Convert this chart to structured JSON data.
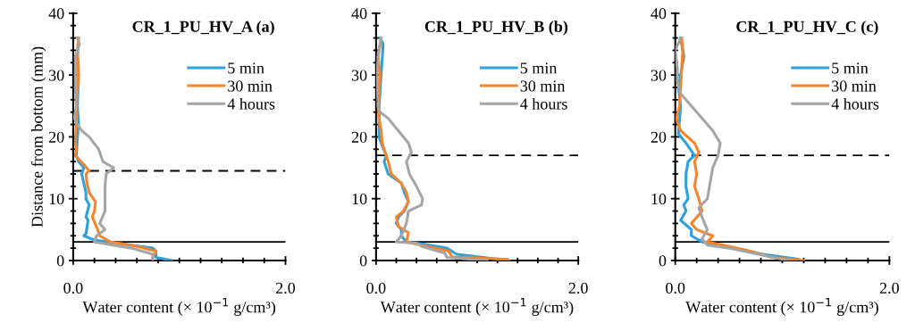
{
  "chart_data": [
    {
      "type": "line",
      "title": "CR_1_PU_HV_A (a)",
      "xlabel": "Water content (× 10$^{−1}$ g/cm³)",
      "ylabel": "Distance from bottom (mm)",
      "legend": "right",
      "grid": false,
      "xlim": [
        0,
        2
      ],
      "xticks": [
        {
          "value": 0,
          "label": "0.0"
        },
        {
          "value": 0.2,
          "label": null
        },
        {
          "value": 0.4,
          "label": null
        },
        {
          "value": 0.6,
          "label": null
        },
        {
          "value": 0.8,
          "label": null
        },
        {
          "value": 1.0,
          "label": null
        },
        {
          "value": 1.2,
          "label": null
        },
        {
          "value": 1.4,
          "label": null
        },
        {
          "value": 1.6,
          "label": null
        },
        {
          "value": 1.8,
          "label": null
        },
        {
          "value": 2,
          "label": "2.0"
        }
      ],
      "ylim": [
        0,
        40
      ],
      "yticks": [
        0,
        {
          "value": 2,
          "label": null
        },
        {
          "value": 4,
          "label": null
        },
        {
          "value": 6,
          "label": null
        },
        {
          "value": 8,
          "label": null
        },
        10,
        {
          "value": 12,
          "label": null
        },
        {
          "value": 14,
          "label": null
        },
        {
          "value": 16,
          "label": null
        },
        {
          "value": 18,
          "label": null
        },
        20,
        {
          "value": 22,
          "label": null
        },
        {
          "value": 24,
          "label": null
        },
        {
          "value": 26,
          "label": null
        },
        {
          "value": 28,
          "label": null
        },
        30,
        {
          "value": 32,
          "label": null
        },
        {
          "value": 34,
          "label": null
        },
        {
          "value": 36,
          "label": null
        },
        {
          "value": 38,
          "label": null
        },
        40
      ],
      "ref_lines": [
        {
          "axis": "y",
          "value": 3,
          "color": "#000000",
          "line_style": "solid"
        },
        {
          "axis": "y",
          "value": 14.5,
          "color": "#000000",
          "line_style": "dashed"
        }
      ],
      "series": [
        {
          "name": "5 min",
          "color": "#2ea1dc",
          "x": [
            0.93,
            0.78,
            0.78,
            0.75,
            0.45,
            0.2,
            0.1,
            0.12,
            0.14,
            0.12,
            0.15,
            0.12,
            0.12,
            0.1,
            0.08,
            0.1,
            0.05,
            0.03,
            0.04,
            0.05,
            0.04,
            0.05,
            0.04,
            0.05
          ],
          "values": [
            0,
            0.5,
            1.5,
            2,
            2.7,
            3.3,
            4,
            4.3,
            6.5,
            7,
            9,
            10,
            11,
            12.5,
            14,
            15,
            16,
            17,
            20,
            22,
            25,
            30,
            33,
            36
          ]
        },
        {
          "name": "30 min",
          "color": "#f7842b",
          "x": [
            0.75,
            0.78,
            0.55,
            0.35,
            0.25,
            0.23,
            0.18,
            0.2,
            0.21,
            0.15,
            0.13,
            0.12,
            0.15,
            0.1,
            0.02,
            0.03,
            0.02,
            0.03,
            0.03,
            0.05,
            0.04,
            0.05
          ],
          "values": [
            0.5,
            1.5,
            2.5,
            3,
            4,
            5,
            7,
            8,
            9.5,
            11,
            12.5,
            14,
            14.5,
            15.5,
            17,
            18,
            19,
            22,
            25,
            30,
            34,
            36
          ]
        },
        {
          "name": "4 hours",
          "color": "#a5a5a5",
          "x": [
            0.75,
            0.75,
            0.55,
            0.2,
            0.22,
            0.3,
            0.25,
            0.3,
            0.3,
            0.3,
            0.31,
            0.38,
            0.28,
            0.24,
            0.15,
            0.08,
            0.04,
            0.01,
            0.03,
            0.02,
            0.02,
            0.02,
            0.06,
            0.04
          ],
          "values": [
            0,
            1,
            2,
            3,
            4,
            5,
            6,
            8,
            10,
            12,
            14,
            15,
            16,
            18,
            20,
            21,
            22,
            23,
            25,
            28,
            30,
            33,
            35,
            36
          ]
        }
      ]
    },
    {
      "type": "line",
      "title": "CR_1_PU_HV_B (b)",
      "xlabel": "Water content (× 10$^{−1}$ g/cm³)",
      "legend": "right",
      "grid": false,
      "xlim": [
        0,
        2
      ],
      "xticks": [
        {
          "value": 0,
          "label": "0.0"
        },
        {
          "value": 0.2,
          "label": null
        },
        {
          "value": 0.4,
          "label": null
        },
        {
          "value": 0.6,
          "label": null
        },
        {
          "value": 0.8,
          "label": null
        },
        {
          "value": 1.0,
          "label": null
        },
        {
          "value": 1.2,
          "label": null
        },
        {
          "value": 1.4,
          "label": null
        },
        {
          "value": 1.6,
          "label": null
        },
        {
          "value": 1.8,
          "label": null
        },
        {
          "value": 2,
          "label": "2.0"
        }
      ],
      "ylim": [
        0,
        40
      ],
      "yticks": [
        0,
        {
          "value": 2,
          "label": null
        },
        {
          "value": 4,
          "label": null
        },
        {
          "value": 6,
          "label": null
        },
        {
          "value": 8,
          "label": null
        },
        10,
        {
          "value": 12,
          "label": null
        },
        {
          "value": 14,
          "label": null
        },
        {
          "value": 16,
          "label": null
        },
        {
          "value": 18,
          "label": null
        },
        20,
        {
          "value": 22,
          "label": null
        },
        {
          "value": 24,
          "label": null
        },
        {
          "value": 26,
          "label": null
        },
        {
          "value": 28,
          "label": null
        },
        30,
        {
          "value": 32,
          "label": null
        },
        {
          "value": 34,
          "label": null
        },
        {
          "value": 36,
          "label": null
        },
        {
          "value": 38,
          "label": null
        },
        40
      ],
      "ref_lines": [
        {
          "axis": "y",
          "value": 3,
          "color": "#000000",
          "line_style": "solid"
        },
        {
          "axis": "y",
          "value": 17,
          "color": "#000000",
          "line_style": "dashed"
        }
      ],
      "series": [
        {
          "name": "5 min",
          "color": "#2ea1dc",
          "x": [
            1.32,
            0.8,
            0.7,
            0.45,
            0.3,
            0.25,
            0.25,
            0.2,
            0.22,
            0.28,
            0.32,
            0.28,
            0.25,
            0.12,
            0.1,
            0.08,
            0.1,
            0.05,
            0.03,
            0.03,
            0.05,
            0.07,
            0.04
          ],
          "values": [
            0,
            1,
            2,
            2.7,
            3,
            4,
            5,
            6,
            7,
            8,
            9.5,
            11,
            12.5,
            14,
            15,
            16,
            17,
            19,
            20,
            25,
            30,
            35,
            36
          ]
        },
        {
          "name": "30 min",
          "color": "#f7842b",
          "x": [
            1.3,
            0.75,
            0.72,
            0.45,
            0.3,
            0.32,
            0.22,
            0.2,
            0.27,
            0.32,
            0.3,
            0.25,
            0.15,
            0.12,
            0.1,
            0.06,
            0.05,
            0.03,
            0.02,
            0.04,
            0.02,
            0.05
          ],
          "values": [
            0.2,
            0.6,
            1.5,
            2.5,
            3,
            4.5,
            5.5,
            7,
            8,
            9.5,
            11,
            12.5,
            14,
            16,
            17,
            19,
            21,
            23,
            25,
            30,
            33,
            36
          ]
        },
        {
          "name": "4 hours",
          "color": "#a5a5a5",
          "x": [
            1.1,
            0.7,
            0.68,
            0.45,
            0.4,
            0.2,
            0.25,
            0.3,
            0.32,
            0.45,
            0.46,
            0.4,
            0.33,
            0.3,
            0.35,
            0.32,
            0.22,
            0.12,
            0.04,
            0.02,
            0.01,
            0.02,
            0.05
          ],
          "values": [
            0,
            0.5,
            1.2,
            2.3,
            2.8,
            3,
            4,
            6,
            8,
            9,
            10,
            12,
            14,
            16,
            17.5,
            19,
            21,
            23,
            24,
            25,
            30,
            33,
            36
          ]
        }
      ]
    },
    {
      "type": "line",
      "title": "CR_1_PU_HV_C (c)",
      "xlabel": "Water content (× 10$^{−1}$ g/cm³)",
      "legend": "right",
      "grid": false,
      "xlim": [
        0,
        2
      ],
      "xticks": [
        {
          "value": 0,
          "label": "0.0"
        },
        {
          "value": 0.2,
          "label": null
        },
        {
          "value": 0.4,
          "label": null
        },
        {
          "value": 0.6,
          "label": null
        },
        {
          "value": 0.8,
          "label": null
        },
        {
          "value": 1.0,
          "label": null
        },
        {
          "value": 1.2,
          "label": null
        },
        {
          "value": 1.4,
          "label": null
        },
        {
          "value": 1.6,
          "label": null
        },
        {
          "value": 1.8,
          "label": null
        },
        {
          "value": 2,
          "label": "2.0"
        }
      ],
      "ylim": [
        0,
        40
      ],
      "yticks": [
        0,
        {
          "value": 2,
          "label": null
        },
        {
          "value": 4,
          "label": null
        },
        {
          "value": 6,
          "label": null
        },
        {
          "value": 8,
          "label": null
        },
        10,
        {
          "value": 12,
          "label": null
        },
        {
          "value": 14,
          "label": null
        },
        {
          "value": 16,
          "label": null
        },
        {
          "value": 18,
          "label": null
        },
        20,
        {
          "value": 22,
          "label": null
        },
        {
          "value": 24,
          "label": null
        },
        {
          "value": 26,
          "label": null
        },
        {
          "value": 28,
          "label": null
        },
        30,
        {
          "value": 32,
          "label": null
        },
        {
          "value": 34,
          "label": null
        },
        {
          "value": 36,
          "label": null
        },
        {
          "value": 38,
          "label": null
        },
        40
      ],
      "ref_lines": [
        {
          "axis": "y",
          "value": 3,
          "color": "#000000",
          "line_style": "solid"
        },
        {
          "axis": "y",
          "value": 17,
          "color": "#000000",
          "line_style": "dashed"
        }
      ],
      "series": [
        {
          "name": "5 min",
          "color": "#2ea1dc",
          "x": [
            1.18,
            1.15,
            0.82,
            0.55,
            0.25,
            0.15,
            0.15,
            0.05,
            0.1,
            0.08,
            0.12,
            0.1,
            0.1,
            0.12,
            0.18,
            0.1,
            0.03,
            0.05,
            0.03,
            0.05,
            0.08,
            0.05
          ],
          "values": [
            0,
            0.2,
            1,
            2,
            3,
            4,
            5,
            6.5,
            8,
            9,
            10,
            12,
            14,
            16,
            17,
            19,
            20.5,
            25,
            28,
            30,
            33,
            36
          ]
        },
        {
          "name": "30 min",
          "color": "#f7842b",
          "x": [
            1.2,
            0.9,
            0.7,
            0.45,
            0.3,
            0.35,
            0.2,
            0.15,
            0.25,
            0.22,
            0.18,
            0.2,
            0.18,
            0.22,
            0.18,
            0.05,
            0.01,
            0.04,
            0.05,
            0.06,
            0.07,
            0.06
          ],
          "values": [
            0,
            0.5,
            1.5,
            2.5,
            3,
            4,
            5,
            6,
            8,
            10,
            12,
            14,
            16,
            17.5,
            19,
            21,
            23,
            25,
            28,
            31,
            34,
            36
          ]
        },
        {
          "name": "4 hours",
          "color": "#a5a5a5",
          "x": [
            1.05,
            0.78,
            0.5,
            0.3,
            0.25,
            0.3,
            0.25,
            0.22,
            0.3,
            0.32,
            0.35,
            0.4,
            0.42,
            0.35,
            0.25,
            0.15,
            0.05,
            0.02,
            0.02,
            0.0,
            0.05
          ],
          "values": [
            0,
            1,
            2,
            2.5,
            3.5,
            5,
            7,
            8.5,
            10,
            12,
            15,
            17,
            19,
            21,
            23,
            25,
            27,
            29,
            31,
            34,
            36
          ]
        }
      ]
    }
  ]
}
